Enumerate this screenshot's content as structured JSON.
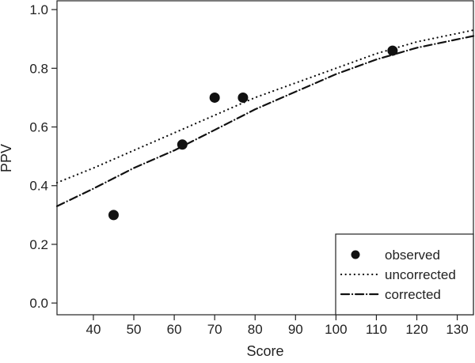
{
  "chart_data": {
    "type": "scatter",
    "title": "",
    "xlabel": "Score",
    "ylabel": "PPV",
    "xlim": [
      31,
      134
    ],
    "ylim": [
      -0.04,
      1.03
    ],
    "xticks": [
      40,
      50,
      60,
      70,
      80,
      90,
      100,
      110,
      120,
      130
    ],
    "yticks": [
      0.0,
      0.2,
      0.4,
      0.6,
      0.8,
      1.0
    ],
    "xtick_labels": [
      "40",
      "50",
      "60",
      "70",
      "80",
      "90",
      "100",
      "110",
      "120",
      "130"
    ],
    "ytick_labels": [
      "0.0",
      "0.2",
      "0.4",
      "0.6",
      "0.8",
      "1.0"
    ],
    "grid": false,
    "legend_position": "bottom-right",
    "series": [
      {
        "name": "observed",
        "kind": "points",
        "x": [
          45,
          62,
          70,
          77,
          114
        ],
        "y": [
          0.3,
          0.54,
          0.7,
          0.7,
          0.86
        ]
      },
      {
        "name": "uncorrected",
        "kind": "line",
        "style": "dotted",
        "x": [
          31,
          40,
          50,
          60,
          70,
          80,
          90,
          100,
          110,
          120,
          134
        ],
        "y": [
          0.41,
          0.46,
          0.52,
          0.58,
          0.64,
          0.7,
          0.75,
          0.8,
          0.85,
          0.89,
          0.93
        ]
      },
      {
        "name": "corrected",
        "kind": "line",
        "style": "dash-dot",
        "x": [
          31,
          40,
          50,
          60,
          70,
          80,
          90,
          100,
          110,
          120,
          134
        ],
        "y": [
          0.33,
          0.39,
          0.46,
          0.52,
          0.59,
          0.66,
          0.72,
          0.78,
          0.83,
          0.87,
          0.91
        ]
      }
    ]
  }
}
